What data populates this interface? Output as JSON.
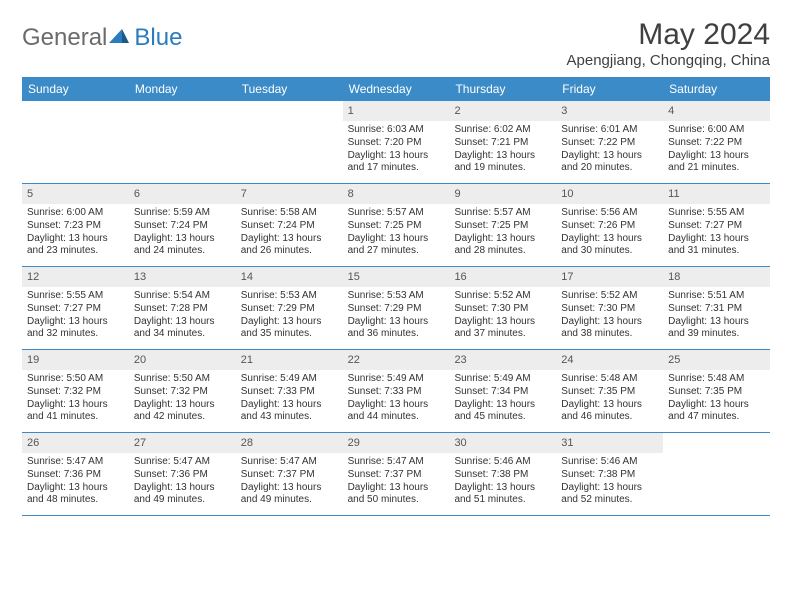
{
  "logo": {
    "text1": "General",
    "text2": "Blue"
  },
  "title": "May 2024",
  "location": "Apengjiang, Chongqing, China",
  "colors": {
    "header_bg": "#3b8bc8",
    "header_text": "#ffffff",
    "daynum_bg": "#ededed",
    "row_border": "#3b8bc8",
    "logo_gray": "#6b6b6b",
    "logo_blue": "#2b7bbf"
  },
  "weekdays": [
    "Sunday",
    "Monday",
    "Tuesday",
    "Wednesday",
    "Thursday",
    "Friday",
    "Saturday"
  ],
  "weeks": [
    [
      {
        "n": "",
        "sun": "",
        "set": "",
        "dl1": "",
        "dl2": ""
      },
      {
        "n": "",
        "sun": "",
        "set": "",
        "dl1": "",
        "dl2": ""
      },
      {
        "n": "",
        "sun": "",
        "set": "",
        "dl1": "",
        "dl2": ""
      },
      {
        "n": "1",
        "sun": "Sunrise: 6:03 AM",
        "set": "Sunset: 7:20 PM",
        "dl1": "Daylight: 13 hours",
        "dl2": "and 17 minutes."
      },
      {
        "n": "2",
        "sun": "Sunrise: 6:02 AM",
        "set": "Sunset: 7:21 PM",
        "dl1": "Daylight: 13 hours",
        "dl2": "and 19 minutes."
      },
      {
        "n": "3",
        "sun": "Sunrise: 6:01 AM",
        "set": "Sunset: 7:22 PM",
        "dl1": "Daylight: 13 hours",
        "dl2": "and 20 minutes."
      },
      {
        "n": "4",
        "sun": "Sunrise: 6:00 AM",
        "set": "Sunset: 7:22 PM",
        "dl1": "Daylight: 13 hours",
        "dl2": "and 21 minutes."
      }
    ],
    [
      {
        "n": "5",
        "sun": "Sunrise: 6:00 AM",
        "set": "Sunset: 7:23 PM",
        "dl1": "Daylight: 13 hours",
        "dl2": "and 23 minutes."
      },
      {
        "n": "6",
        "sun": "Sunrise: 5:59 AM",
        "set": "Sunset: 7:24 PM",
        "dl1": "Daylight: 13 hours",
        "dl2": "and 24 minutes."
      },
      {
        "n": "7",
        "sun": "Sunrise: 5:58 AM",
        "set": "Sunset: 7:24 PM",
        "dl1": "Daylight: 13 hours",
        "dl2": "and 26 minutes."
      },
      {
        "n": "8",
        "sun": "Sunrise: 5:57 AM",
        "set": "Sunset: 7:25 PM",
        "dl1": "Daylight: 13 hours",
        "dl2": "and 27 minutes."
      },
      {
        "n": "9",
        "sun": "Sunrise: 5:57 AM",
        "set": "Sunset: 7:25 PM",
        "dl1": "Daylight: 13 hours",
        "dl2": "and 28 minutes."
      },
      {
        "n": "10",
        "sun": "Sunrise: 5:56 AM",
        "set": "Sunset: 7:26 PM",
        "dl1": "Daylight: 13 hours",
        "dl2": "and 30 minutes."
      },
      {
        "n": "11",
        "sun": "Sunrise: 5:55 AM",
        "set": "Sunset: 7:27 PM",
        "dl1": "Daylight: 13 hours",
        "dl2": "and 31 minutes."
      }
    ],
    [
      {
        "n": "12",
        "sun": "Sunrise: 5:55 AM",
        "set": "Sunset: 7:27 PM",
        "dl1": "Daylight: 13 hours",
        "dl2": "and 32 minutes."
      },
      {
        "n": "13",
        "sun": "Sunrise: 5:54 AM",
        "set": "Sunset: 7:28 PM",
        "dl1": "Daylight: 13 hours",
        "dl2": "and 34 minutes."
      },
      {
        "n": "14",
        "sun": "Sunrise: 5:53 AM",
        "set": "Sunset: 7:29 PM",
        "dl1": "Daylight: 13 hours",
        "dl2": "and 35 minutes."
      },
      {
        "n": "15",
        "sun": "Sunrise: 5:53 AM",
        "set": "Sunset: 7:29 PM",
        "dl1": "Daylight: 13 hours",
        "dl2": "and 36 minutes."
      },
      {
        "n": "16",
        "sun": "Sunrise: 5:52 AM",
        "set": "Sunset: 7:30 PM",
        "dl1": "Daylight: 13 hours",
        "dl2": "and 37 minutes."
      },
      {
        "n": "17",
        "sun": "Sunrise: 5:52 AM",
        "set": "Sunset: 7:30 PM",
        "dl1": "Daylight: 13 hours",
        "dl2": "and 38 minutes."
      },
      {
        "n": "18",
        "sun": "Sunrise: 5:51 AM",
        "set": "Sunset: 7:31 PM",
        "dl1": "Daylight: 13 hours",
        "dl2": "and 39 minutes."
      }
    ],
    [
      {
        "n": "19",
        "sun": "Sunrise: 5:50 AM",
        "set": "Sunset: 7:32 PM",
        "dl1": "Daylight: 13 hours",
        "dl2": "and 41 minutes."
      },
      {
        "n": "20",
        "sun": "Sunrise: 5:50 AM",
        "set": "Sunset: 7:32 PM",
        "dl1": "Daylight: 13 hours",
        "dl2": "and 42 minutes."
      },
      {
        "n": "21",
        "sun": "Sunrise: 5:49 AM",
        "set": "Sunset: 7:33 PM",
        "dl1": "Daylight: 13 hours",
        "dl2": "and 43 minutes."
      },
      {
        "n": "22",
        "sun": "Sunrise: 5:49 AM",
        "set": "Sunset: 7:33 PM",
        "dl1": "Daylight: 13 hours",
        "dl2": "and 44 minutes."
      },
      {
        "n": "23",
        "sun": "Sunrise: 5:49 AM",
        "set": "Sunset: 7:34 PM",
        "dl1": "Daylight: 13 hours",
        "dl2": "and 45 minutes."
      },
      {
        "n": "24",
        "sun": "Sunrise: 5:48 AM",
        "set": "Sunset: 7:35 PM",
        "dl1": "Daylight: 13 hours",
        "dl2": "and 46 minutes."
      },
      {
        "n": "25",
        "sun": "Sunrise: 5:48 AM",
        "set": "Sunset: 7:35 PM",
        "dl1": "Daylight: 13 hours",
        "dl2": "and 47 minutes."
      }
    ],
    [
      {
        "n": "26",
        "sun": "Sunrise: 5:47 AM",
        "set": "Sunset: 7:36 PM",
        "dl1": "Daylight: 13 hours",
        "dl2": "and 48 minutes."
      },
      {
        "n": "27",
        "sun": "Sunrise: 5:47 AM",
        "set": "Sunset: 7:36 PM",
        "dl1": "Daylight: 13 hours",
        "dl2": "and 49 minutes."
      },
      {
        "n": "28",
        "sun": "Sunrise: 5:47 AM",
        "set": "Sunset: 7:37 PM",
        "dl1": "Daylight: 13 hours",
        "dl2": "and 49 minutes."
      },
      {
        "n": "29",
        "sun": "Sunrise: 5:47 AM",
        "set": "Sunset: 7:37 PM",
        "dl1": "Daylight: 13 hours",
        "dl2": "and 50 minutes."
      },
      {
        "n": "30",
        "sun": "Sunrise: 5:46 AM",
        "set": "Sunset: 7:38 PM",
        "dl1": "Daylight: 13 hours",
        "dl2": "and 51 minutes."
      },
      {
        "n": "31",
        "sun": "Sunrise: 5:46 AM",
        "set": "Sunset: 7:38 PM",
        "dl1": "Daylight: 13 hours",
        "dl2": "and 52 minutes."
      },
      {
        "n": "",
        "sun": "",
        "set": "",
        "dl1": "",
        "dl2": ""
      }
    ]
  ]
}
